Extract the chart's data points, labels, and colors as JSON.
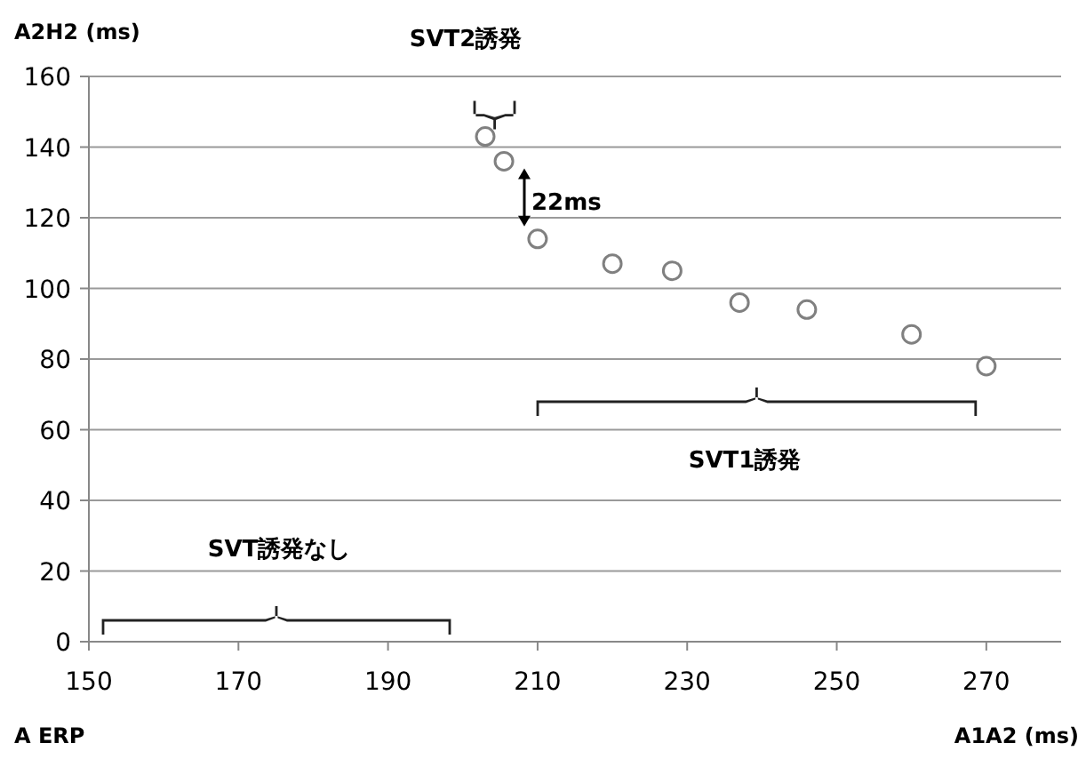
{
  "chart_data": {
    "type": "scatter",
    "ylabel": "A2H2 (ms)",
    "xlabel": "A1A2 (ms)",
    "x": [
      203,
      205.5,
      210,
      220,
      228,
      237,
      246,
      260,
      270
    ],
    "values": [
      143,
      136,
      114,
      107,
      105,
      96,
      94,
      87,
      78
    ],
    "color": "#808080",
    "marker": "circle",
    "xlim": [
      150,
      280
    ],
    "xticks": [
      150,
      170,
      190,
      210,
      230,
      250,
      270
    ],
    "ylim": [
      0,
      160
    ],
    "yticks": [
      0,
      20,
      40,
      60,
      80,
      100,
      120,
      140,
      160
    ],
    "grid": "y",
    "annotations": [
      "SVT2誘発",
      "22ms",
      "SVT1誘発",
      "SVT誘発なし",
      "A ERP"
    ]
  }
}
